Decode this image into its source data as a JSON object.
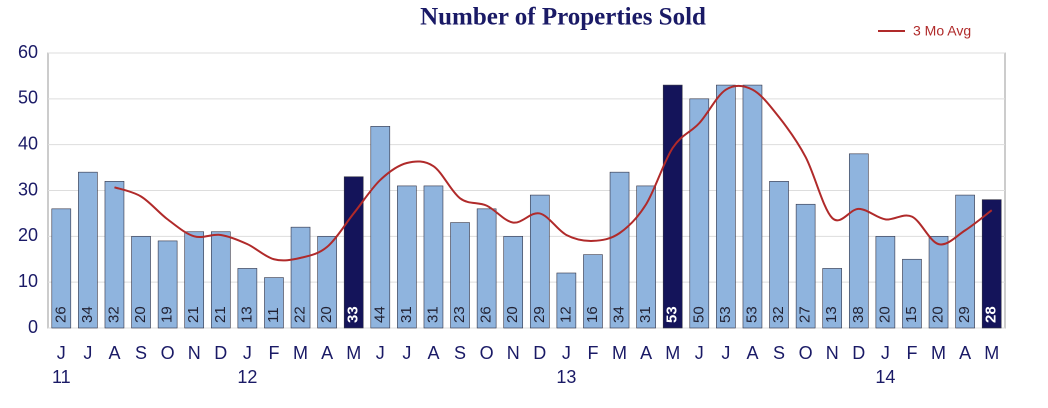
{
  "chart_data": {
    "type": "bar",
    "title": "Number of Properties Sold",
    "categories": [
      "J",
      "J",
      "A",
      "S",
      "O",
      "N",
      "D",
      "J",
      "F",
      "M",
      "A",
      "M",
      "J",
      "J",
      "A",
      "S",
      "O",
      "N",
      "D",
      "J",
      "F",
      "M",
      "A",
      "M",
      "J",
      "J",
      "A",
      "S",
      "O",
      "N",
      "D",
      "J",
      "F",
      "M",
      "A",
      "M"
    ],
    "year_labels": [
      "11",
      null,
      null,
      null,
      null,
      null,
      null,
      "12",
      null,
      null,
      null,
      null,
      null,
      null,
      null,
      null,
      null,
      null,
      null,
      "13",
      null,
      null,
      null,
      null,
      null,
      null,
      null,
      null,
      null,
      null,
      null,
      "14",
      null,
      null,
      null,
      null
    ],
    "series": [
      {
        "name": "Properties Sold",
        "type": "bar",
        "values": [
          26,
          34,
          32,
          20,
          19,
          21,
          21,
          13,
          11,
          22,
          20,
          33,
          44,
          31,
          31,
          23,
          26,
          20,
          29,
          12,
          16,
          34,
          31,
          53,
          50,
          53,
          53,
          32,
          27,
          13,
          38,
          20,
          15,
          20,
          29,
          28
        ],
        "colors": [
          "#8fb4de",
          "#8fb4de",
          "#8fb4de",
          "#8fb4de",
          "#8fb4de",
          "#8fb4de",
          "#8fb4de",
          "#8fb4de",
          "#8fb4de",
          "#8fb4de",
          "#8fb4de",
          "#14145a",
          "#8fb4de",
          "#8fb4de",
          "#8fb4de",
          "#8fb4de",
          "#8fb4de",
          "#8fb4de",
          "#8fb4de",
          "#8fb4de",
          "#8fb4de",
          "#8fb4de",
          "#8fb4de",
          "#14145a",
          "#8fb4de",
          "#8fb4de",
          "#8fb4de",
          "#8fb4de",
          "#8fb4de",
          "#8fb4de",
          "#8fb4de",
          "#8fb4de",
          "#8fb4de",
          "#8fb4de",
          "#8fb4de",
          "#14145a"
        ]
      },
      {
        "name": "3 Mo Avg",
        "type": "line",
        "color": "#b02a2a",
        "values": [
          null,
          null,
          30.7,
          28.7,
          23.7,
          20,
          20.3,
          18.3,
          15,
          15.3,
          17.7,
          25,
          32.3,
          36,
          35.3,
          28.3,
          26.7,
          23,
          25,
          20.3,
          19,
          20.7,
          27,
          39.3,
          44.7,
          52,
          52,
          46,
          37.3,
          24,
          26,
          23.7,
          24.3,
          18.3,
          21.3,
          25.7
        ]
      }
    ],
    "ylim": [
      0,
      60
    ],
    "yticks": [
      0,
      10,
      20,
      30,
      40,
      50,
      60
    ],
    "grid": true,
    "legend": "top-right"
  }
}
